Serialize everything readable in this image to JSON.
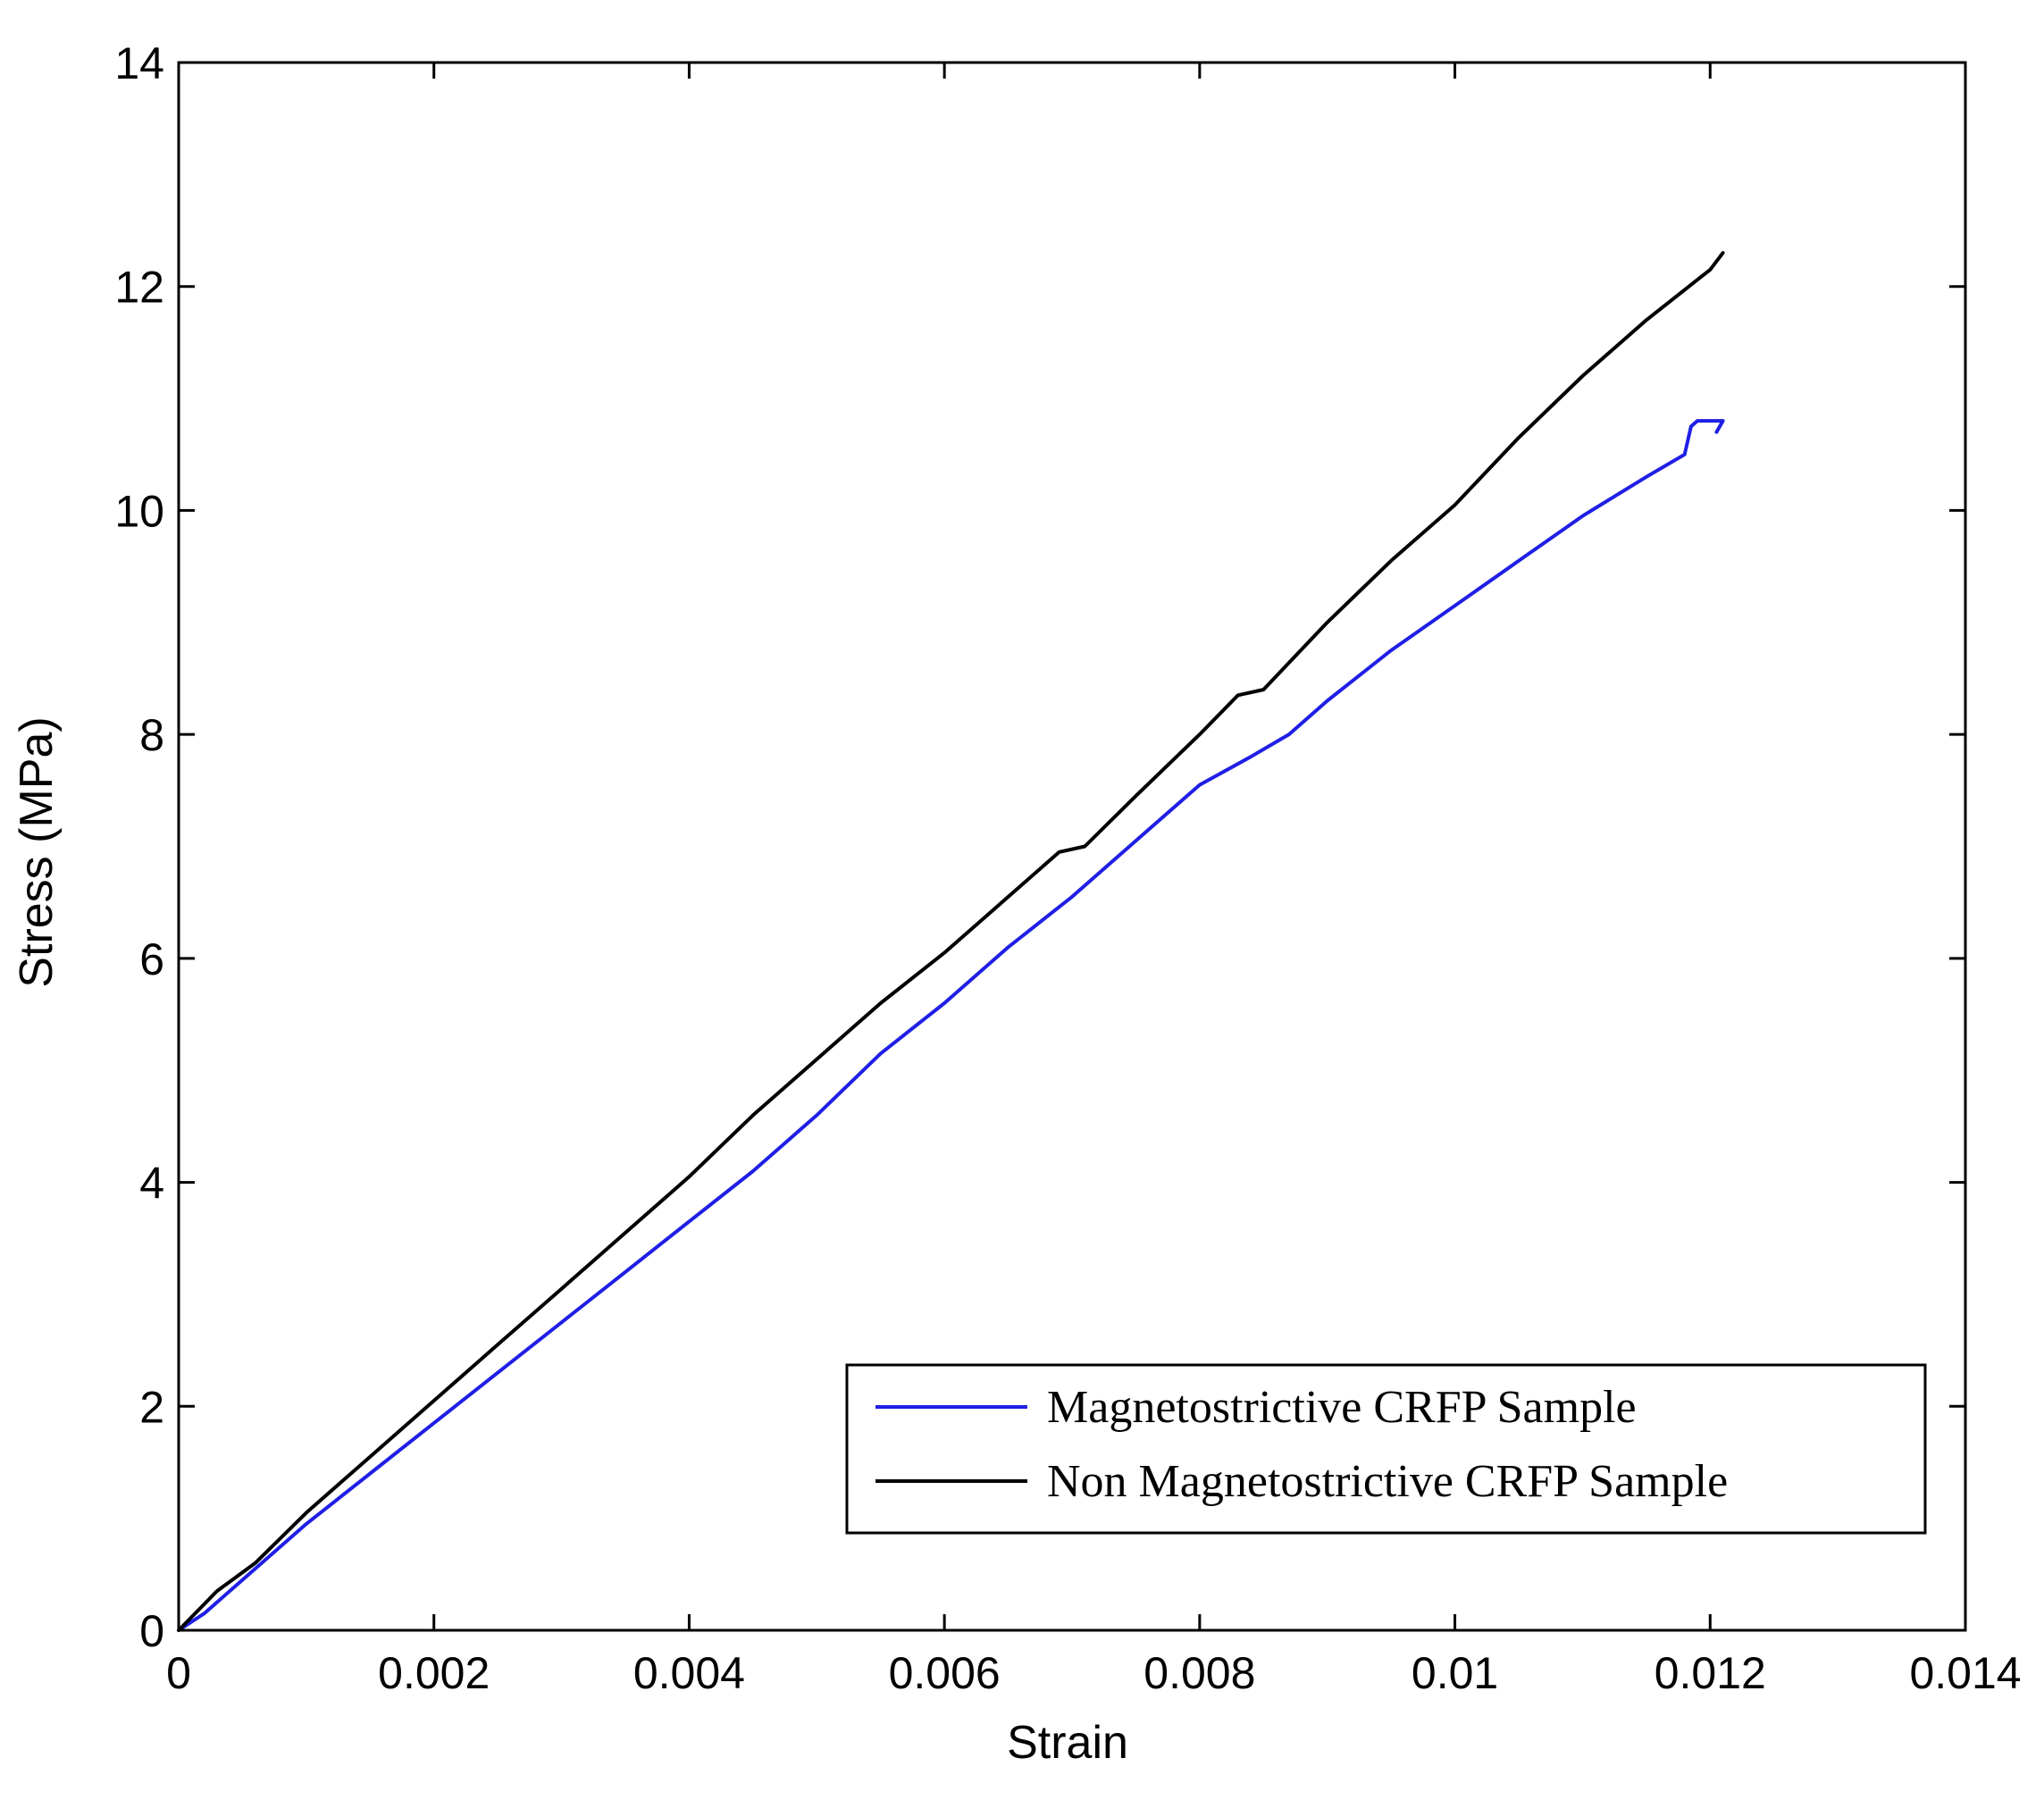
{
  "chart_data": {
    "type": "line",
    "title": "",
    "xlabel": "Strain",
    "ylabel": "Stress (MPa)",
    "xlim": [
      0,
      0.014
    ],
    "ylim": [
      0,
      14
    ],
    "xticks": [
      0,
      0.002,
      0.004,
      0.006,
      0.008,
      0.01,
      0.012,
      0.014
    ],
    "xtick_labels": [
      "0",
      "0.002",
      "0.004",
      "0.006",
      "0.008",
      "0.01",
      "0.012",
      "0.014"
    ],
    "yticks": [
      0,
      2,
      4,
      6,
      8,
      10,
      12,
      14
    ],
    "ytick_labels": [
      "0",
      "2",
      "4",
      "6",
      "8",
      "10",
      "12",
      "14"
    ],
    "grid": false,
    "legend_position": "bottom-right",
    "series": [
      {
        "name": "Magnetostrictive CRFP Sample",
        "color": "#1f1fe6",
        "x": [
          0,
          0.0002,
          0.0005,
          0.001,
          0.0015,
          0.002,
          0.0025,
          0.003,
          0.0035,
          0.004,
          0.0045,
          0.005,
          0.0055,
          0.006,
          0.0065,
          0.007,
          0.0075,
          0.008,
          0.0084,
          0.0087,
          0.009,
          0.0095,
          0.01,
          0.0105,
          0.011,
          0.0115,
          0.0118,
          0.01185,
          0.0119,
          0.0121,
          0.01205,
          0.0121
        ],
        "y": [
          0,
          0.15,
          0.45,
          0.95,
          1.4,
          1.85,
          2.3,
          2.75,
          3.2,
          3.65,
          4.1,
          4.6,
          5.15,
          5.6,
          6.1,
          6.55,
          7.05,
          7.55,
          7.8,
          8.0,
          8.3,
          8.75,
          9.15,
          9.55,
          9.95,
          10.3,
          10.5,
          10.75,
          10.8,
          10.8,
          10.7,
          10.8
        ]
      },
      {
        "name": "Non Magnetostrictive CRFP Sample",
        "color": "#000000",
        "x": [
          0,
          0.0003,
          0.0006,
          0.001,
          0.0015,
          0.002,
          0.0025,
          0.003,
          0.0035,
          0.004,
          0.0045,
          0.005,
          0.0055,
          0.006,
          0.0065,
          0.0069,
          0.0071,
          0.0075,
          0.008,
          0.0083,
          0.0085,
          0.009,
          0.0095,
          0.01,
          0.0105,
          0.011,
          0.0115,
          0.012,
          0.0121
        ],
        "y": [
          0,
          0.35,
          0.6,
          1.05,
          1.55,
          2.05,
          2.55,
          3.05,
          3.55,
          4.05,
          4.6,
          5.1,
          5.6,
          6.05,
          6.55,
          6.95,
          7.0,
          7.45,
          8.0,
          8.35,
          8.4,
          9.0,
          9.55,
          10.05,
          10.65,
          11.2,
          11.7,
          12.15,
          12.3
        ]
      }
    ]
  }
}
